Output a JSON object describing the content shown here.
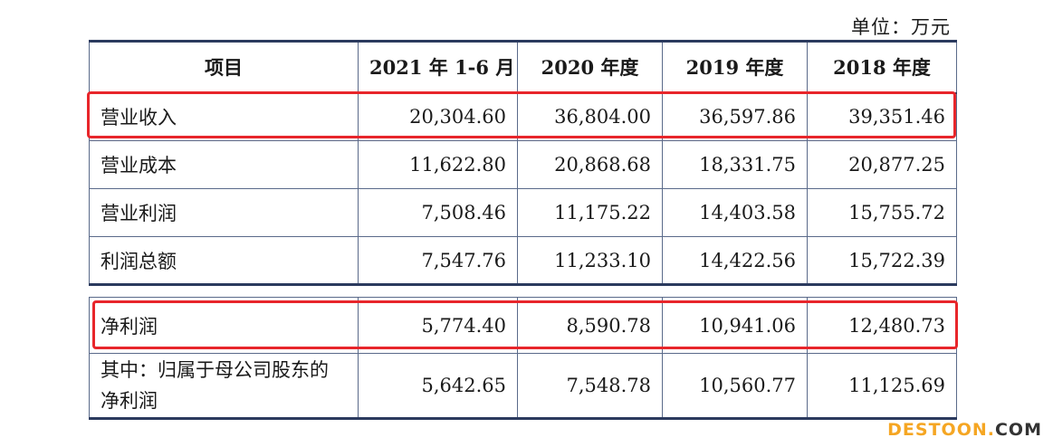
{
  "unit_label": "单位：万元",
  "headers": [
    "项目",
    "2021 年 1-6 月",
    "2020 年度",
    "2019 年度",
    "2018 年度"
  ],
  "rows": [
    {
      "label": "营业收入",
      "values": [
        "20,304.60",
        "36,804.00",
        "36,597.86",
        "39,351.46"
      ]
    },
    {
      "label": "营业成本",
      "values": [
        "11,622.80",
        "20,868.68",
        "18,331.75",
        "20,877.25"
      ]
    },
    {
      "label": "营业利润",
      "values": [
        "7,508.46",
        "11,175.22",
        "14,403.58",
        "15,755.72"
      ]
    },
    {
      "label": "利润总额",
      "values": [
        "7,547.76",
        "11,233.10",
        "14,422.56",
        "15,722.39"
      ]
    }
  ],
  "rows2": [
    {
      "label": "净利润",
      "values": [
        "5,774.40",
        "8,590.78",
        "10,941.06",
        "12,480.73"
      ]
    },
    {
      "label": "其中：归属于母公司股东的净利润",
      "values": [
        "5,642.65",
        "7,548.78",
        "10,560.77",
        "11,125.69"
      ]
    }
  ],
  "watermark": {
    "main": "DESTOON",
    "dot": ".",
    "com": "COM"
  },
  "highlight_color": "#e8262b"
}
